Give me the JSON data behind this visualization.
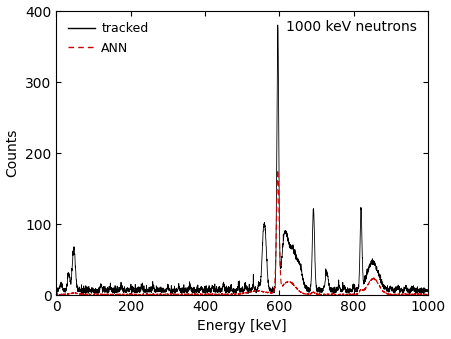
{
  "title": "1000 keV neutrons",
  "xlabel": "Energy [keV]",
  "ylabel": "Counts",
  "xlim": [
    0,
    1000
  ],
  "ylim": [
    0,
    400
  ],
  "yticks": [
    0,
    100,
    200,
    300,
    400
  ],
  "xticks": [
    0,
    200,
    400,
    600,
    800,
    1000
  ],
  "tracked_color": "#000000",
  "ann_color": "#cc0000",
  "background_color": "#ffffff",
  "figsize": [
    4.51,
    3.39
  ],
  "dpi": 100,
  "legend_fontsize": 9,
  "axis_fontsize": 10,
  "title_fontsize": 10
}
